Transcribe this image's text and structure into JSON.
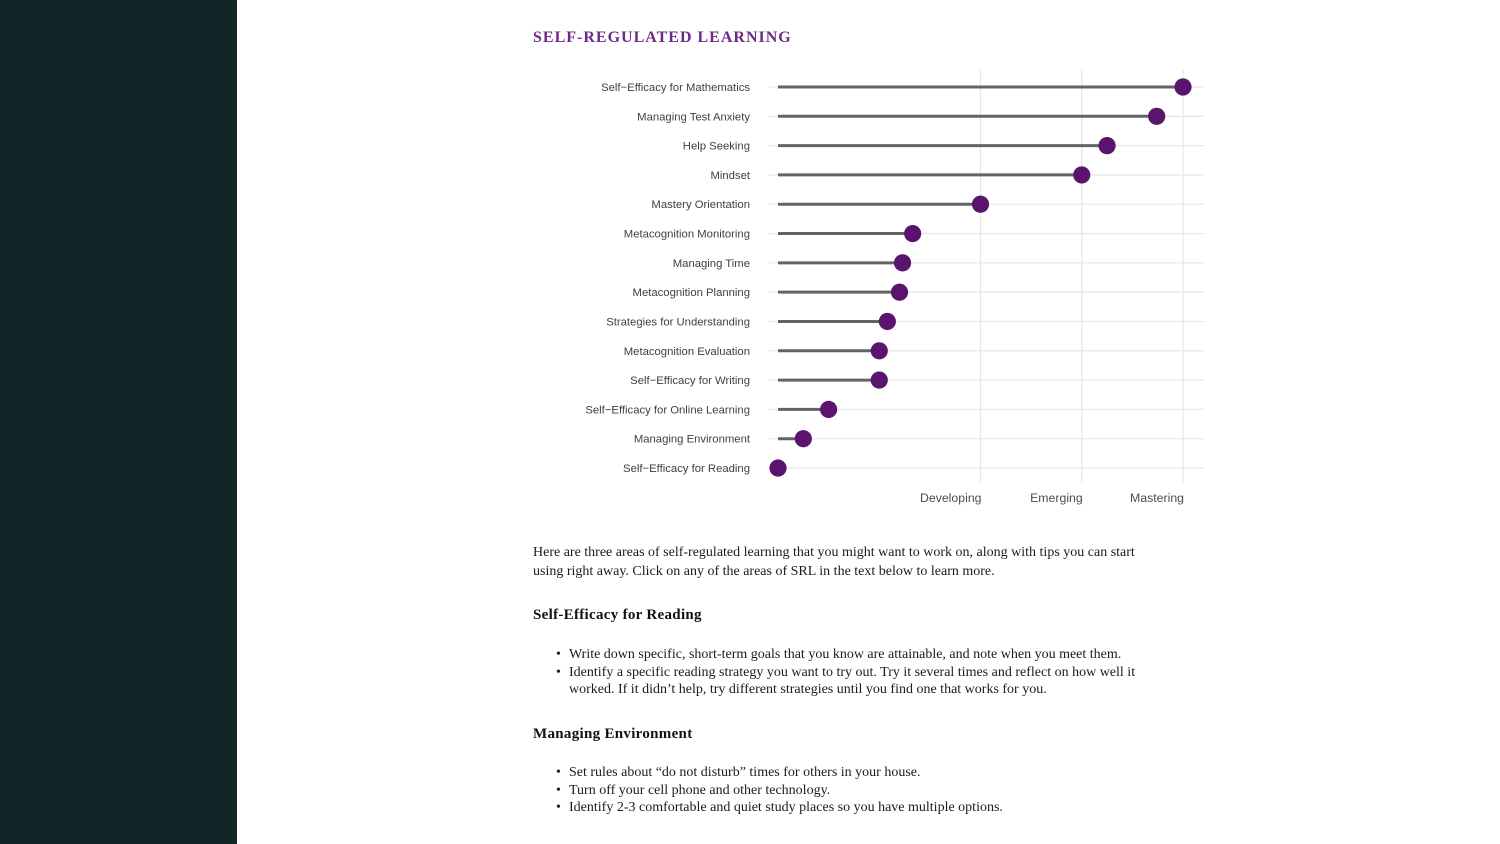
{
  "page": {
    "title": "SELF-REGULATED LEARNING"
  },
  "colors": {
    "sidebar_bg": "#102627",
    "title_text": "#6d2a87",
    "dot_fill": "#5a146e",
    "stem": "#646464",
    "gridline": "#e7e7e7",
    "axis_label": "#404040",
    "tick_label": "#4d4d4d",
    "body_text": "#1b1b1b"
  },
  "chart_data": {
    "type": "lollipop",
    "title": "",
    "xlabel": "",
    "ylabel": "",
    "legend": "none",
    "grid": "light horizontal line per category; vertical gridlines at named ticks",
    "categories": [
      "Self−Efficacy for Mathematics",
      "Managing Test Anxiety",
      "Help Seeking",
      "Mindset",
      "Mastery Orientation",
      "Metacognition Monitoring",
      "Managing Time",
      "Metacognition Planning",
      "Strategies for Understanding",
      "Metacognition Evaluation",
      "Self−Efficacy for Writing",
      "Self−Efficacy for Online Learning",
      "Managing Environment",
      "Self−Efficacy for Reading"
    ],
    "values": [
      5.0,
      4.74,
      4.25,
      4.0,
      3.0,
      2.33,
      2.23,
      2.2,
      2.08,
      2.0,
      2.0,
      1.5,
      1.25,
      1.0
    ],
    "x_ticks": [
      {
        "label": "Developing",
        "value": 3
      },
      {
        "label": "Emerging",
        "value": 4
      },
      {
        "label": "Mastering",
        "value": 5
      }
    ],
    "xlim": [
      1,
      5
    ],
    "stem_start": 1
  },
  "intro": {
    "text": "Here are three areas of self-regulated learning that you might want to work on, along with tips you can start\nusing right away. Click on any of the areas of SRL in the text below to learn more."
  },
  "sections": [
    {
      "heading": "Self-Efficacy for Reading",
      "bullets": [
        "Write down specific, short-term goals that you know are attainable, and note when you meet them.",
        "Identify a specific reading strategy you want to try out. Try it several times and reflect on how well it\nworked. If it didn’t help, try different strategies until you find one that works for you."
      ]
    },
    {
      "heading": "Managing Environment",
      "bullets": [
        "Set rules about “do not disturb” times for others in your house.",
        "Turn off your cell phone and other technology.",
        "Identify 2-3 comfortable and quiet study places so you have multiple options."
      ]
    }
  ]
}
